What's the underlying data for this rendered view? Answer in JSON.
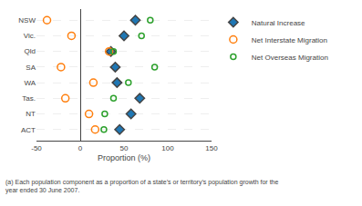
{
  "chart_data": {
    "type": "scatter",
    "categories": [
      "NSW",
      "Vic.",
      "Qld",
      "SA",
      "WA",
      "Tas.",
      "NT",
      "ACT"
    ],
    "series": [
      {
        "name": "Natural Increase",
        "marker": "diamond",
        "values": [
          63,
          50,
          35,
          40,
          42,
          68,
          58,
          45
        ]
      },
      {
        "name": "Net Interstate Migration",
        "marker": "circle-open",
        "values": [
          -38,
          -10,
          33,
          -22,
          15,
          -17,
          10,
          17
        ]
      },
      {
        "name": "Net Overseas Migration",
        "marker": "circle-open",
        "values": [
          80,
          70,
          38,
          85,
          55,
          38,
          28,
          27
        ]
      }
    ],
    "xlim": [
      -50,
      150
    ],
    "xticks": [
      -50,
      0,
      50,
      100,
      150
    ],
    "xlabel": "Proportion (%)",
    "annotations": [
      "(a) Each population component as a proportion of a state’s or territory’s population growth for the\nyear ended 30 June 2007."
    ],
    "grid": true,
    "legend": "right"
  }
}
